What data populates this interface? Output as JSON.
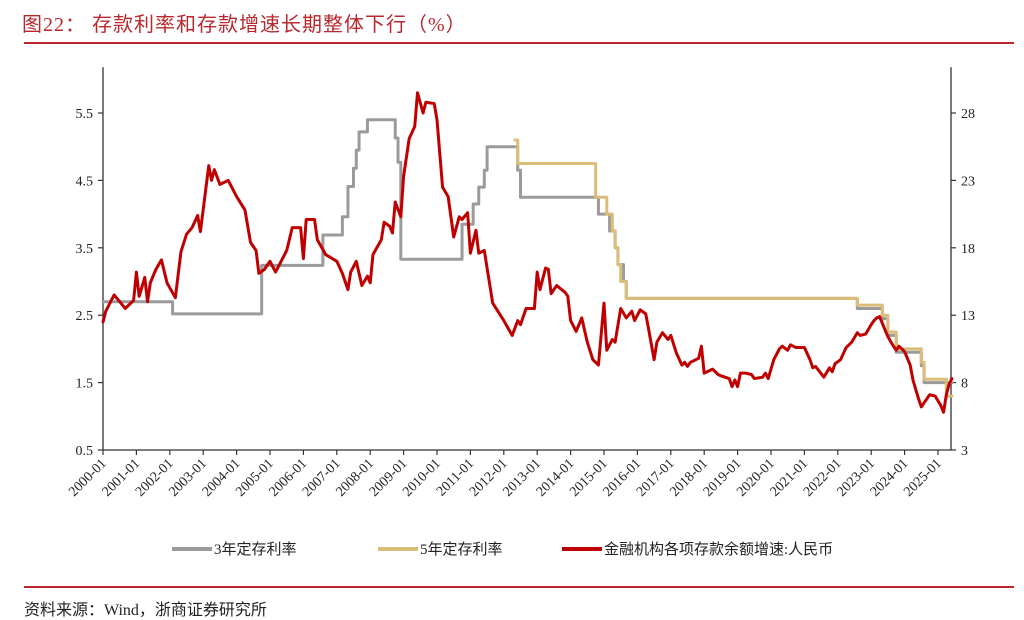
{
  "title": "图22：  存款利率和存款增速长期整体下行（%）",
  "source": "资料来源：Wind，浙商证券研究所",
  "chart_data": {
    "type": "line",
    "title": "存款利率和存款增速长期整体下行（%）",
    "x_tick_labels": [
      "2000-01",
      "2001-01",
      "2002-01",
      "2003-01",
      "2004-01",
      "2005-01",
      "2006-01",
      "2007-01",
      "2008-01",
      "2009-01",
      "2010-01",
      "2011-01",
      "2012-01",
      "2013-01",
      "2014-01",
      "2015-01",
      "2016-01",
      "2017-01",
      "2018-01",
      "2019-01",
      "2020-01",
      "2021-01",
      "2022-01",
      "2023-01",
      "2024-01",
      "2025-01"
    ],
    "y_left": {
      "ticks": [
        0.5,
        1.5,
        2.5,
        3.5,
        4.5,
        5.5
      ],
      "tick_labels": [
        "0.5",
        "1.5",
        "2.5",
        "3.5",
        "4.5",
        "5.5"
      ],
      "range": [
        0.5,
        6.0
      ]
    },
    "y_right": {
      "ticks": [
        3,
        8,
        13,
        18,
        23,
        28
      ],
      "tick_labels": [
        "3",
        "8",
        "13",
        "18",
        "23",
        "28"
      ],
      "range": [
        3,
        30.5
      ]
    },
    "grid": false,
    "legend_position": "bottom",
    "series": [
      {
        "name": "3年定存利率",
        "axis": "left",
        "color": "#9B9B9B",
        "step": true,
        "points": [
          [
            "2000-01",
            2.7
          ],
          [
            "2002-02",
            2.52
          ],
          [
            "2004-10",
            3.24
          ],
          [
            "2006-08",
            3.69
          ],
          [
            "2007-03",
            3.96
          ],
          [
            "2007-05",
            4.41
          ],
          [
            "2007-07",
            4.68
          ],
          [
            "2007-08",
            4.95
          ],
          [
            "2007-09",
            5.22
          ],
          [
            "2007-12",
            5.4
          ],
          [
            "2008-10",
            5.13
          ],
          [
            "2008-11",
            4.77
          ],
          [
            "2008-12",
            3.33
          ],
          [
            "2010-10",
            3.85
          ],
          [
            "2011-02",
            4.15
          ],
          [
            "2011-04",
            4.4
          ],
          [
            "2011-06",
            4.65
          ],
          [
            "2011-07",
            5.0
          ],
          [
            "2012-06",
            4.65
          ],
          [
            "2012-07",
            4.25
          ],
          [
            "2014-11",
            4.0
          ],
          [
            "2015-03",
            3.75
          ],
          [
            "2015-05",
            3.5
          ],
          [
            "2015-06",
            3.25
          ],
          [
            "2015-08",
            3.0
          ],
          [
            "2015-09",
            2.75
          ],
          [
            "2022-08",
            2.6
          ],
          [
            "2023-05",
            2.45
          ],
          [
            "2023-07",
            2.2
          ],
          [
            "2023-10",
            1.95
          ],
          [
            "2024-07",
            1.75
          ],
          [
            "2024-08",
            1.5
          ],
          [
            "2025-06",
            1.5
          ]
        ]
      },
      {
        "name": "5年定存利率",
        "axis": "left",
        "color": "#D9BD78",
        "step": true,
        "points": [
          [
            "2012-05",
            5.1
          ],
          [
            "2012-06",
            4.75
          ],
          [
            "2014-10",
            4.25
          ],
          [
            "2015-02",
            4.0
          ],
          [
            "2015-04",
            3.75
          ],
          [
            "2015-05",
            3.5
          ],
          [
            "2015-06",
            3.25
          ],
          [
            "2015-07",
            3.0
          ],
          [
            "2015-09",
            2.75
          ],
          [
            "2022-08",
            2.65
          ],
          [
            "2023-05",
            2.5
          ],
          [
            "2023-07",
            2.25
          ],
          [
            "2023-10",
            2.0
          ],
          [
            "2024-07",
            1.8
          ],
          [
            "2024-08",
            1.55
          ],
          [
            "2025-04",
            1.3
          ],
          [
            "2025-06",
            1.3
          ]
        ]
      },
      {
        "name": "金融机构各项存款余额增速:人民币",
        "axis": "right",
        "color": "#C00000",
        "step": false,
        "points": [
          [
            "2000-01",
            12.5
          ],
          [
            "2000-02",
            13.3
          ],
          [
            "2000-05",
            14.5
          ],
          [
            "2000-09",
            13.5
          ],
          [
            "2000-12",
            14.1
          ],
          [
            "2001-01",
            16.2
          ],
          [
            "2001-02",
            14.4
          ],
          [
            "2001-04",
            15.8
          ],
          [
            "2001-05",
            14.0
          ],
          [
            "2001-06",
            15.4
          ],
          [
            "2001-08",
            16.4
          ],
          [
            "2001-10",
            17.1
          ],
          [
            "2001-12",
            15.4
          ],
          [
            "2002-03",
            14.3
          ],
          [
            "2002-05",
            17.7
          ],
          [
            "2002-07",
            19.0
          ],
          [
            "2002-09",
            19.5
          ],
          [
            "2002-11",
            20.4
          ],
          [
            "2002-12",
            19.2
          ],
          [
            "2003-03",
            24.1
          ],
          [
            "2003-04",
            23.0
          ],
          [
            "2003-05",
            23.8
          ],
          [
            "2003-07",
            22.7
          ],
          [
            "2003-10",
            23.0
          ],
          [
            "2004-01",
            21.8
          ],
          [
            "2004-04",
            20.8
          ],
          [
            "2004-06",
            18.4
          ],
          [
            "2004-08",
            17.8
          ],
          [
            "2004-09",
            16.1
          ],
          [
            "2004-11",
            16.4
          ],
          [
            "2005-01",
            17.0
          ],
          [
            "2005-03",
            16.2
          ],
          [
            "2005-07",
            17.8
          ],
          [
            "2005-09",
            19.5
          ],
          [
            "2005-12",
            19.5
          ],
          [
            "2006-01",
            17.2
          ],
          [
            "2006-02",
            20.1
          ],
          [
            "2006-05",
            20.1
          ],
          [
            "2006-06",
            18.6
          ],
          [
            "2006-09",
            17.5
          ],
          [
            "2007-01",
            17.0
          ],
          [
            "2007-03",
            16.1
          ],
          [
            "2007-05",
            14.9
          ],
          [
            "2007-06",
            16.2
          ],
          [
            "2007-08",
            17.0
          ],
          [
            "2007-10",
            15.2
          ],
          [
            "2007-12",
            15.9
          ],
          [
            "2008-01",
            15.4
          ],
          [
            "2008-02",
            17.5
          ],
          [
            "2008-05",
            18.6
          ],
          [
            "2008-06",
            19.9
          ],
          [
            "2008-08",
            19.6
          ],
          [
            "2008-09",
            19.1
          ],
          [
            "2008-10",
            21.4
          ],
          [
            "2008-12",
            20.3
          ],
          [
            "2009-01",
            23.3
          ],
          [
            "2009-03",
            26.1
          ],
          [
            "2009-05",
            27.0
          ],
          [
            "2009-06",
            29.5
          ],
          [
            "2009-08",
            28.0
          ],
          [
            "2009-09",
            28.8
          ],
          [
            "2009-12",
            28.7
          ],
          [
            "2010-01",
            27.5
          ],
          [
            "2010-03",
            22.5
          ],
          [
            "2010-05",
            21.8
          ],
          [
            "2010-07",
            18.8
          ],
          [
            "2010-09",
            20.3
          ],
          [
            "2010-10",
            20.1
          ],
          [
            "2010-12",
            20.6
          ],
          [
            "2011-01",
            17.6
          ],
          [
            "2011-03",
            19.3
          ],
          [
            "2011-04",
            17.6
          ],
          [
            "2011-06",
            17.8
          ],
          [
            "2011-09",
            13.9
          ],
          [
            "2012-01",
            12.6
          ],
          [
            "2012-04",
            11.5
          ],
          [
            "2012-06",
            12.6
          ],
          [
            "2012-07",
            12.3
          ],
          [
            "2012-09",
            13.5
          ],
          [
            "2012-12",
            13.5
          ],
          [
            "2013-01",
            16.2
          ],
          [
            "2013-02",
            14.9
          ],
          [
            "2013-04",
            16.5
          ],
          [
            "2013-05",
            16.4
          ],
          [
            "2013-06",
            14.6
          ],
          [
            "2013-08",
            15.2
          ],
          [
            "2013-11",
            14.7
          ],
          [
            "2013-12",
            14.4
          ],
          [
            "2014-01",
            12.6
          ],
          [
            "2014-03",
            11.8
          ],
          [
            "2014-05",
            12.8
          ],
          [
            "2014-07",
            11.0
          ],
          [
            "2014-09",
            9.7
          ],
          [
            "2014-11",
            9.3
          ],
          [
            "2015-01",
            13.9
          ],
          [
            "2015-02",
            10.4
          ],
          [
            "2015-04",
            11.2
          ],
          [
            "2015-05",
            11.0
          ],
          [
            "2015-07",
            13.5
          ],
          [
            "2015-09",
            12.8
          ],
          [
            "2015-11",
            13.3
          ],
          [
            "2015-12",
            12.6
          ],
          [
            "2016-02",
            13.4
          ],
          [
            "2016-04",
            13.1
          ],
          [
            "2016-05",
            12.0
          ],
          [
            "2016-07",
            9.7
          ],
          [
            "2016-08",
            11.0
          ],
          [
            "2016-10",
            11.7
          ],
          [
            "2016-12",
            11.2
          ],
          [
            "2017-01",
            11.5
          ],
          [
            "2017-03",
            10.2
          ],
          [
            "2017-05",
            9.3
          ],
          [
            "2017-06",
            9.5
          ],
          [
            "2017-07",
            9.2
          ],
          [
            "2017-08",
            9.5
          ],
          [
            "2017-11",
            9.8
          ],
          [
            "2017-12",
            10.7
          ],
          [
            "2018-01",
            8.7
          ],
          [
            "2018-04",
            9.0
          ],
          [
            "2018-06",
            8.6
          ],
          [
            "2018-07",
            8.5
          ],
          [
            "2018-10",
            8.3
          ],
          [
            "2018-11",
            7.7
          ],
          [
            "2018-12",
            8.2
          ],
          [
            "2019-01",
            7.7
          ],
          [
            "2019-02",
            8.7
          ],
          [
            "2019-04",
            8.7
          ],
          [
            "2019-06",
            8.6
          ],
          [
            "2019-07",
            8.3
          ],
          [
            "2019-10",
            8.4
          ],
          [
            "2019-11",
            8.7
          ],
          [
            "2019-12",
            8.3
          ],
          [
            "2020-02",
            9.7
          ],
          [
            "2020-04",
            10.5
          ],
          [
            "2020-05",
            10.7
          ],
          [
            "2020-07",
            10.4
          ],
          [
            "2020-08",
            10.8
          ],
          [
            "2020-10",
            10.6
          ],
          [
            "2021-01",
            10.6
          ],
          [
            "2021-03",
            9.7
          ],
          [
            "2021-04",
            9.1
          ],
          [
            "2021-05",
            9.2
          ],
          [
            "2021-08",
            8.4
          ],
          [
            "2021-10",
            9.1
          ],
          [
            "2021-11",
            8.8
          ],
          [
            "2021-12",
            9.4
          ],
          [
            "2022-02",
            9.7
          ],
          [
            "2022-04",
            10.6
          ],
          [
            "2022-06",
            11.0
          ],
          [
            "2022-08",
            11.7
          ],
          [
            "2022-09",
            11.5
          ],
          [
            "2022-11",
            11.6
          ],
          [
            "2023-01",
            12.3
          ],
          [
            "2023-02",
            12.6
          ],
          [
            "2023-03",
            12.8
          ],
          [
            "2023-04",
            12.9
          ],
          [
            "2023-05",
            12.4
          ],
          [
            "2023-07",
            11.4
          ],
          [
            "2023-09",
            10.7
          ],
          [
            "2023-10",
            10.4
          ],
          [
            "2023-11",
            10.7
          ],
          [
            "2024-01",
            10.3
          ],
          [
            "2024-03",
            9.3
          ],
          [
            "2024-04",
            8.2
          ],
          [
            "2024-06",
            6.8
          ],
          [
            "2024-07",
            6.2
          ],
          [
            "2024-08",
            6.5
          ],
          [
            "2024-10",
            7.1
          ],
          [
            "2024-12",
            7.0
          ],
          [
            "2025-02",
            6.3
          ],
          [
            "2025-03",
            5.8
          ],
          [
            "2025-04",
            7.1
          ],
          [
            "2025-05",
            7.9
          ],
          [
            "2025-06",
            8.3
          ]
        ]
      }
    ]
  }
}
